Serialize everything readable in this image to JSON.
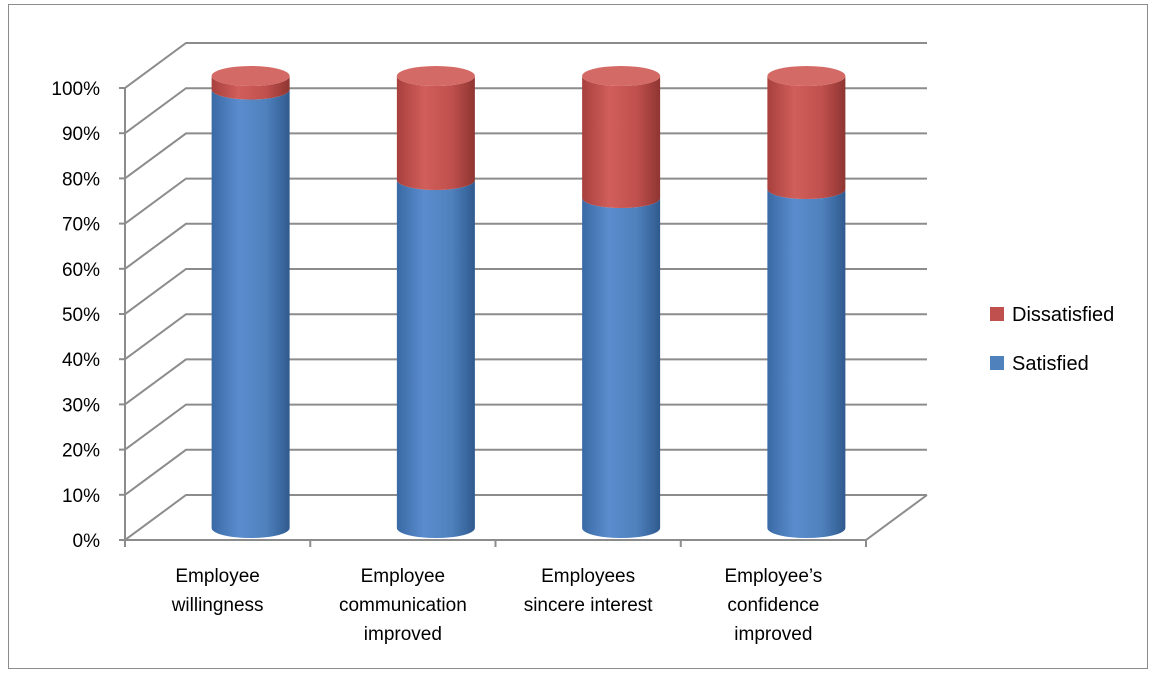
{
  "chart_data": {
    "type": "bar",
    "stacked": true,
    "percent_stacked": true,
    "style": "3d-cylinder",
    "title": "",
    "xlabel": "",
    "ylabel": "",
    "ylim": [
      0,
      1
    ],
    "y_ticks": [
      "0%",
      "10%",
      "20%",
      "30%",
      "40%",
      "50%",
      "60%",
      "70%",
      "80%",
      "90%",
      "100%"
    ],
    "grid": true,
    "legend_position": "right",
    "categories": [
      [
        "Employee",
        "willingness"
      ],
      [
        "Employee",
        "communication",
        "improved"
      ],
      [
        "Employees",
        "sincere interest"
      ],
      [
        "Employee’s",
        "confidence",
        "improved"
      ]
    ],
    "series": [
      {
        "name": "Satisfied",
        "color": "#4f81bd",
        "values": [
          0.97,
          0.77,
          0.73,
          0.75
        ]
      },
      {
        "name": "Dissatisfied",
        "color": "#c0504d",
        "values": [
          0.03,
          0.23,
          0.27,
          0.25
        ]
      }
    ],
    "legend_order": [
      "Dissatisfied",
      "Satisfied"
    ]
  }
}
